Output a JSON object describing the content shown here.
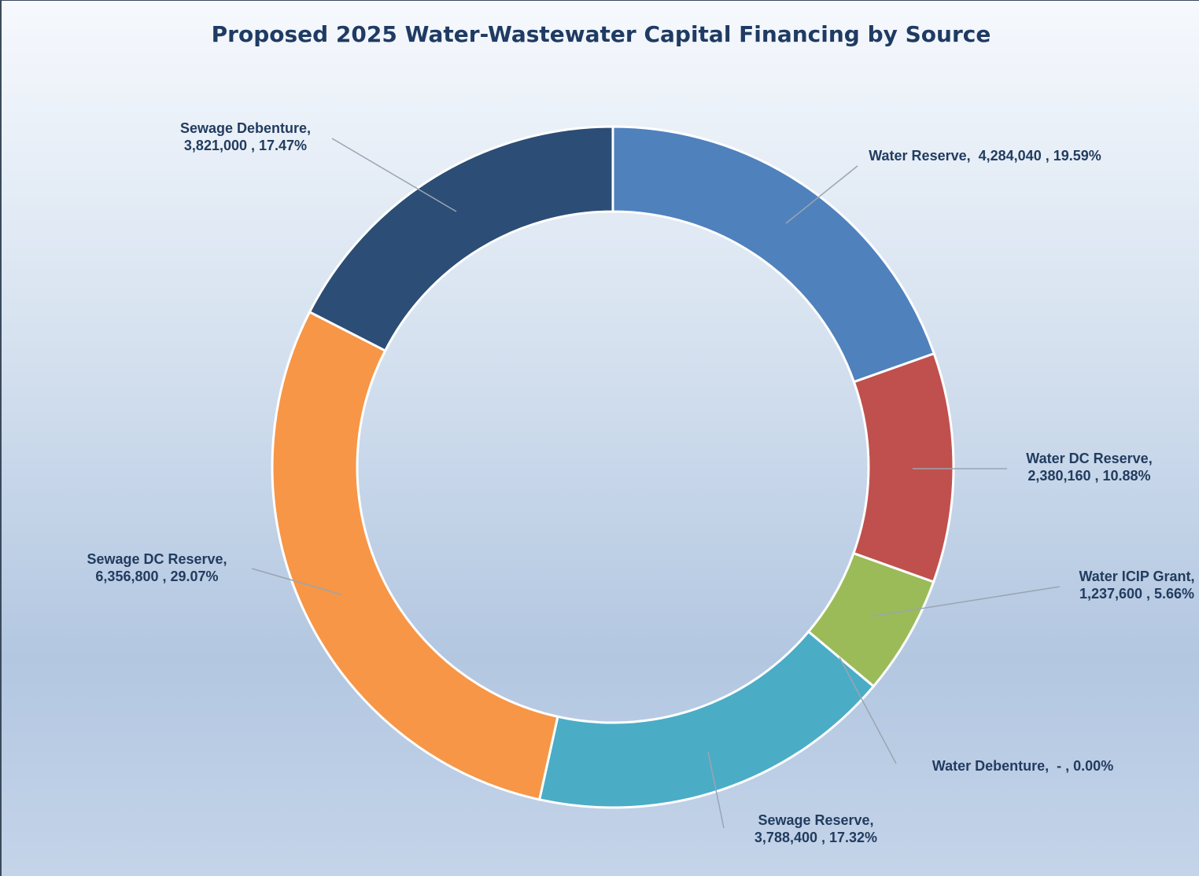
{
  "chart_data": {
    "type": "donut",
    "title": "Proposed 2025 Water-Wastewater Capital Financing by Source",
    "values": [
      4284040,
      2380160,
      1237600,
      0,
      3788400,
      6356800,
      3821000
    ],
    "value_labels": [
      "Water Reserve,  4,284,040 , 19.59%",
      "Water DC Reserve, 2,380,160 , 10.88%",
      "Water ICIP Grant, 1,237,600 , 5.66%",
      "Water Debenture,  - , 0.00%",
      "Sewage Reserve, 3,788,400 , 17.32%",
      "Sewage DC Reserve, 6,356,800 , 29.07%",
      "Sewage Debenture, 3,821,000 , 17.47%"
    ],
    "colors": [
      "#4f81bd",
      "#c0504d",
      "#9bbb59",
      "#8064a2",
      "#4bacc6",
      "#f79646",
      "#2c4d75"
    ]
  }
}
